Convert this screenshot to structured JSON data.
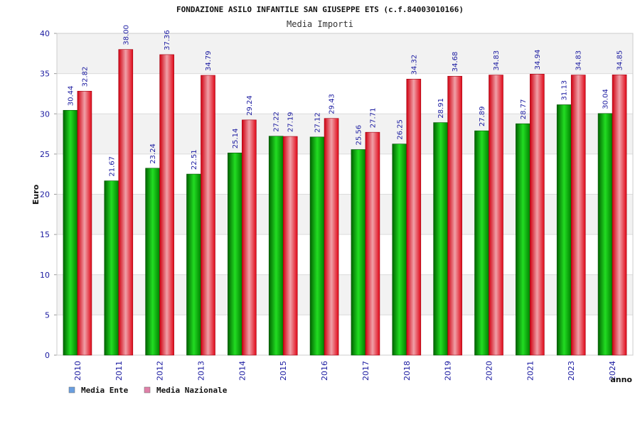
{
  "chart_data": {
    "type": "bar",
    "title": "FONDAZIONE ASILO INFANTILE SAN GIUSEPPE ETS (c.f.84003010166)",
    "subtitle": "Media Importi",
    "xlabel": "anno",
    "ylabel": "Euro",
    "ylim": [
      0,
      40
    ],
    "yticks": [
      0,
      5,
      10,
      15,
      20,
      25,
      30,
      35,
      40
    ],
    "grid": true,
    "legend_position": "bottom-left",
    "categories": [
      "2010",
      "2011",
      "2012",
      "2013",
      "2014",
      "2015",
      "2016",
      "2017",
      "2018",
      "2019",
      "2020",
      "2021",
      "2023",
      "2024"
    ],
    "series": [
      {
        "name": "Media Ente",
        "legend_color": "#6a9fe0",
        "bar_color": "#00b000",
        "values": [
          30.44,
          21.67,
          23.24,
          22.51,
          25.14,
          27.22,
          27.12,
          25.56,
          26.25,
          28.91,
          27.89,
          28.77,
          31.13,
          30.04
        ],
        "labels": [
          "30.44",
          "21.67",
          "23.24",
          "22.51",
          "25.14",
          "27.22",
          "27.12",
          "25.56",
          "26.25",
          "28.91",
          "27.89",
          "28.77",
          "31.13",
          "30.04"
        ]
      },
      {
        "name": "Media Nazionale",
        "legend_color": "#e080a8",
        "bar_color": "#e01020",
        "values": [
          32.82,
          38.0,
          37.36,
          34.79,
          29.24,
          27.19,
          29.43,
          27.71,
          34.32,
          34.68,
          34.83,
          34.94,
          34.83,
          34.85
        ],
        "labels": [
          "32.82",
          "38.00",
          "37.36",
          "34.79",
          "29.24",
          "27.19",
          "29.43",
          "27.71",
          "34.32",
          "34.68",
          "34.83",
          "34.94",
          "34.83",
          "34.85"
        ]
      }
    ]
  }
}
